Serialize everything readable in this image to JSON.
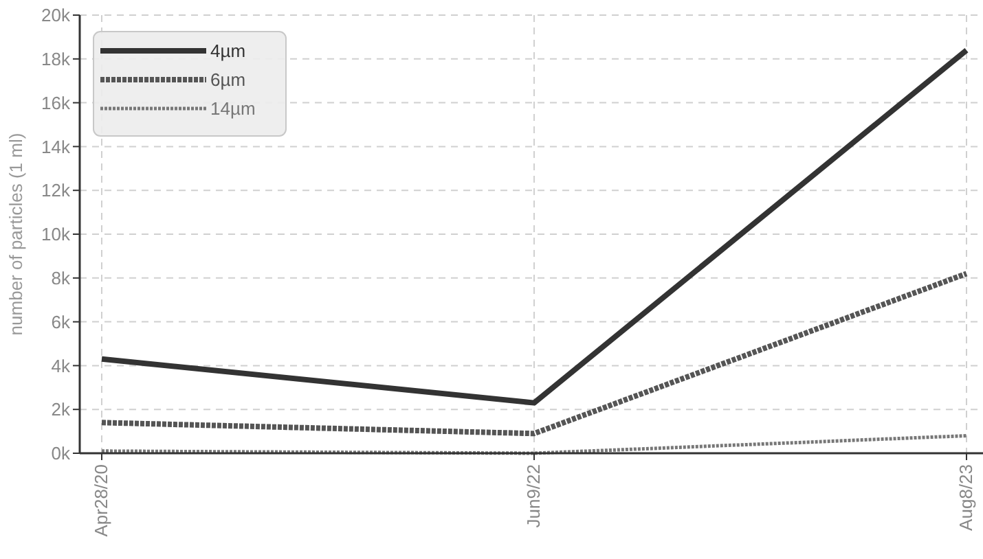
{
  "chart_data": {
    "type": "line",
    "ylabel": "number of particles (1 ml)",
    "categories": [
      "Apr28/20",
      "Jun9/22",
      "Aug8/23"
    ],
    "ylim": [
      0,
      20000
    ],
    "yticks": [
      {
        "value": 0,
        "label": "0k"
      },
      {
        "value": 2000,
        "label": "2k"
      },
      {
        "value": 4000,
        "label": "4k"
      },
      {
        "value": 6000,
        "label": "6k"
      },
      {
        "value": 8000,
        "label": "8k"
      },
      {
        "value": 10000,
        "label": "10k"
      },
      {
        "value": 12000,
        "label": "12k"
      },
      {
        "value": 14000,
        "label": "14k"
      },
      {
        "value": 16000,
        "label": "16k"
      },
      {
        "value": 18000,
        "label": "18k"
      },
      {
        "value": 20000,
        "label": "20k"
      }
    ],
    "grid": true,
    "legend": "top left",
    "marker": "none",
    "series": [
      {
        "name": "4µm",
        "color": "#333333",
        "line_style": "solid",
        "values": [
          4300,
          2300,
          18400
        ]
      },
      {
        "name": "6µm",
        "color": "#555555",
        "line_style": "dashed",
        "values": [
          1400,
          900,
          8200
        ]
      },
      {
        "name": "14µm",
        "color": "#777777",
        "line_style": "dotted",
        "values": [
          100,
          0,
          800
        ]
      }
    ]
  }
}
